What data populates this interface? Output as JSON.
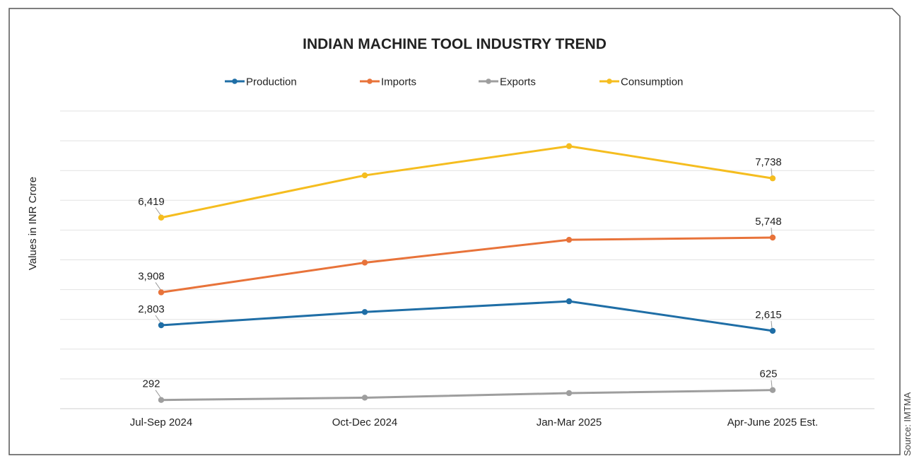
{
  "chart_data": {
    "type": "line",
    "title": "INDIAN MACHINE TOOL INDUSTRY TREND",
    "ylabel": "Values in INR Crore",
    "xlabel": "",
    "source": "Source: IMTMA",
    "categories": [
      "Jul-Sep 2024",
      "Oct-Dec 2024",
      "Jan-Mar 2025",
      "Apr-June 2025 Est."
    ],
    "ylim": [
      0,
      10000
    ],
    "y_gridlines": 10,
    "y_tick_labels_shown": false,
    "legend_position": "top-center",
    "grid": true,
    "series": [
      {
        "name": "Production",
        "color": "#1f6ea6",
        "values": [
          2803,
          3247,
          3608,
          2615
        ],
        "labels": [
          "2,803",
          "",
          "",
          "2,615"
        ]
      },
      {
        "name": "Imports",
        "color": "#e8733a",
        "values": [
          3908,
          4906,
          5673,
          5748
        ],
        "labels": [
          "3,908",
          "",
          "",
          "5,748"
        ]
      },
      {
        "name": "Exports",
        "color": "#9e9e9e",
        "values": [
          292,
          369,
          523,
          625
        ],
        "labels": [
          "292",
          "",
          "",
          "625"
        ]
      },
      {
        "name": "Consumption",
        "color": "#f5bd1f",
        "values": [
          6419,
          7837,
          8819,
          7738
        ],
        "labels": [
          "6,419",
          "",
          "",
          "7,738"
        ]
      }
    ]
  }
}
